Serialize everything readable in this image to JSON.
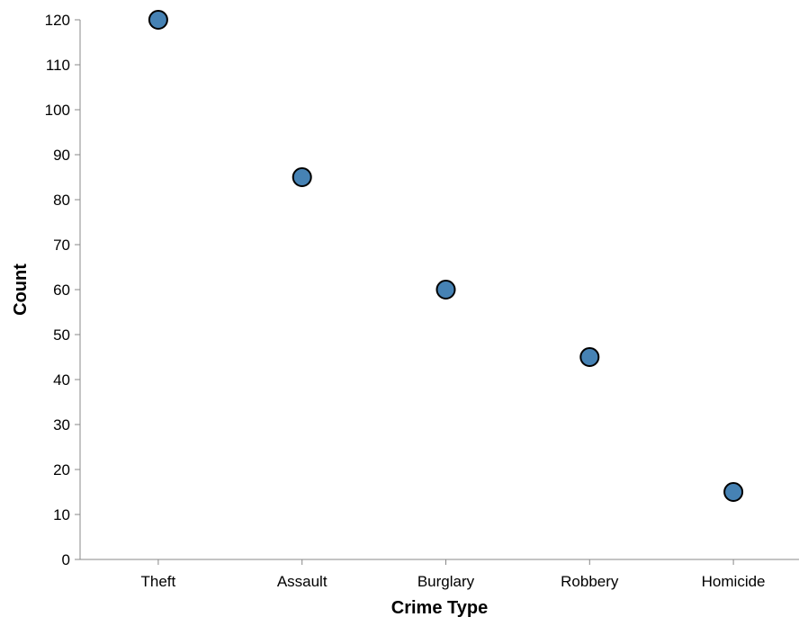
{
  "chart_data": {
    "type": "scatter",
    "title": "",
    "xlabel": "Crime Type",
    "ylabel": "Count",
    "categories": [
      "Theft",
      "Assault",
      "Burglary",
      "Robbery",
      "Homicide"
    ],
    "values": [
      120,
      85,
      60,
      45,
      15
    ],
    "ylim": [
      0,
      120
    ],
    "yticks": [
      0,
      10,
      20,
      30,
      40,
      50,
      60,
      70,
      80,
      90,
      100,
      110,
      120
    ],
    "grid": false,
    "legend": "none",
    "colors": {
      "point_fill": "#4682b4",
      "point_stroke": "#000000",
      "axis": "#888888"
    }
  }
}
